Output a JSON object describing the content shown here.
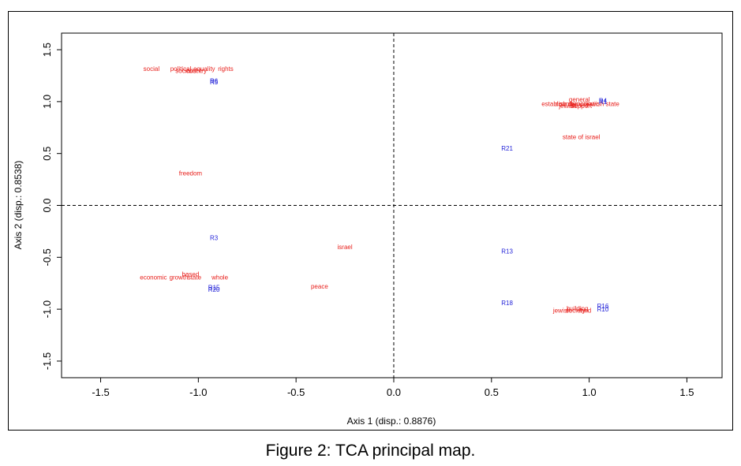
{
  "figure": {
    "caption": "Figure 2: TCA principal map."
  },
  "chart_data": {
    "type": "scatter",
    "title": "",
    "xlabel": "Axis 1 (disp.: 0.8876)",
    "ylabel": "Axis 2 (disp.: 0.8538)",
    "xlim": [
      -1.7,
      1.68
    ],
    "ylim": [
      -1.66,
      1.66
    ],
    "x_ticks": [
      -1.5,
      -1.0,
      -0.5,
      0.0,
      0.5,
      1.0,
      1.5
    ],
    "x_tick_labels": [
      "-1.5",
      "-1.0",
      "-0.5",
      "0.0",
      "0.5",
      "1.0",
      "1.5"
    ],
    "y_ticks": [
      -1.5,
      -1.0,
      -0.5,
      0.0,
      0.5,
      1.0,
      1.5
    ],
    "y_tick_labels": [
      "-1.5",
      "-1.0",
      "-0.5",
      "0.0",
      "0.5",
      "1.0",
      "1.5"
    ],
    "reference_lines": {
      "x": 0,
      "y": 0,
      "style": "dashed"
    },
    "colors": {
      "terms": "#e8201c",
      "responses": "#2323d8",
      "axis": "#000000"
    },
    "series": [
      {
        "name": "terms",
        "color": "#e8201c",
        "points": [
          {
            "label": "social",
            "x": -1.24,
            "y": 1.32
          },
          {
            "label": "political",
            "x": -1.09,
            "y": 1.32
          },
          {
            "label": "equality",
            "x": -0.97,
            "y": 1.32
          },
          {
            "label": "rights",
            "x": -0.86,
            "y": 1.32
          },
          {
            "label": "socialist",
            "x": -1.06,
            "y": 1.3
          },
          {
            "label": "country",
            "x": -1.01,
            "y": 1.3
          },
          {
            "label": "freedom",
            "x": -1.04,
            "y": 0.31
          },
          {
            "label": "israel",
            "x": -0.25,
            "y": -0.4
          },
          {
            "label": "based",
            "x": -1.04,
            "y": -0.66
          },
          {
            "label": "economic",
            "x": -1.23,
            "y": -0.69
          },
          {
            "label": "growth",
            "x": -1.1,
            "y": -0.69
          },
          {
            "label": "state",
            "x": -1.02,
            "y": -0.69
          },
          {
            "label": "whole",
            "x": -0.89,
            "y": -0.69
          },
          {
            "label": "peace",
            "x": -0.38,
            "y": -0.78
          },
          {
            "label": "general",
            "x": 0.95,
            "y": 1.02
          },
          {
            "label": "establish",
            "x": 0.82,
            "y": 0.98
          },
          {
            "label": "country",
            "x": 0.88,
            "y": 0.98
          },
          {
            "label": "people",
            "x": 0.95,
            "y": 0.98
          },
          {
            "label": "democratic",
            "x": 0.97,
            "y": 0.98
          },
          {
            "label": "jewish state",
            "x": 1.07,
            "y": 0.98
          },
          {
            "label": "jewish",
            "x": 0.89,
            "y": 0.96
          },
          {
            "label": "support",
            "x": 0.96,
            "y": 0.96
          },
          {
            "label": "state of israel",
            "x": 0.96,
            "y": 0.66
          },
          {
            "label": "building",
            "x": 0.94,
            "y": -0.99
          },
          {
            "label": "jewish",
            "x": 0.86,
            "y": -1.01
          },
          {
            "label": "society",
            "x": 0.93,
            "y": -1.01
          },
          {
            "label": "land",
            "x": 0.98,
            "y": -1.01
          }
        ]
      },
      {
        "name": "responses",
        "color": "#2323d8",
        "points": [
          {
            "label": "R5",
            "x": -0.92,
            "y": 1.19
          },
          {
            "label": "R6",
            "x": -0.92,
            "y": 1.2
          },
          {
            "label": "R3",
            "x": -0.92,
            "y": -0.31
          },
          {
            "label": "R15",
            "x": -0.92,
            "y": -0.79
          },
          {
            "label": "R20",
            "x": -0.92,
            "y": -0.81
          },
          {
            "label": "R21",
            "x": 0.58,
            "y": 0.55
          },
          {
            "label": "R13",
            "x": 0.58,
            "y": -0.44
          },
          {
            "label": "R18",
            "x": 0.58,
            "y": -0.94
          },
          {
            "label": "R1",
            "x": 1.07,
            "y": 1.0
          },
          {
            "label": "R4",
            "x": 1.07,
            "y": 1.01
          },
          {
            "label": "R16",
            "x": 1.07,
            "y": -0.97
          },
          {
            "label": "R10",
            "x": 1.07,
            "y": -1.0
          }
        ]
      }
    ]
  }
}
